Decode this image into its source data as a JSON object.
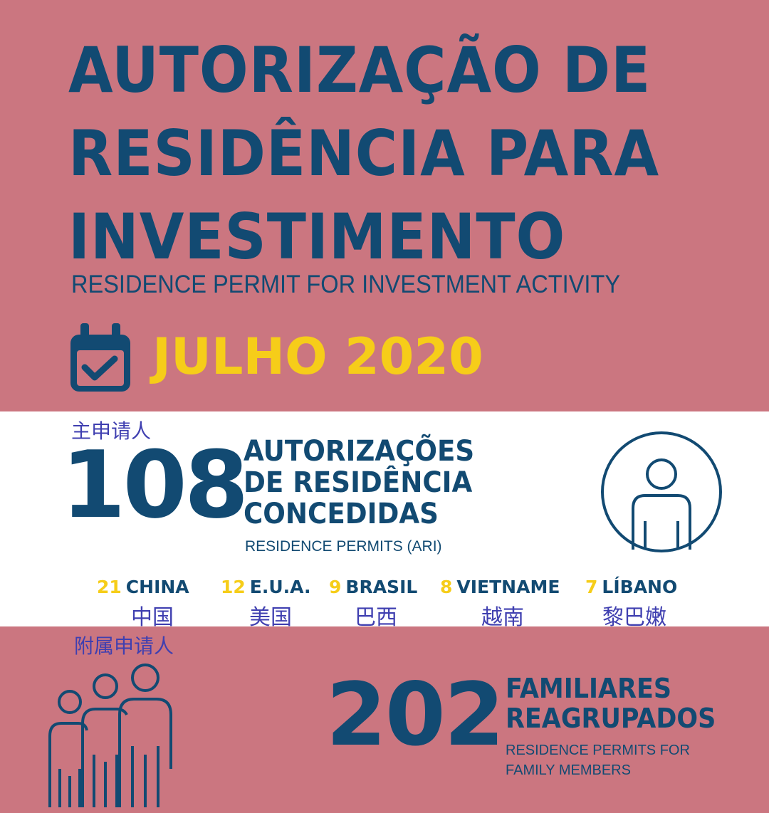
{
  "colors": {
    "background_pink": "#cb7680",
    "navy": "#124a72",
    "yellow": "#f6cd19",
    "white": "#ffffff",
    "chinese_annotation": "#3f3fb0"
  },
  "header": {
    "title_lines": [
      "AUTORIZAÇÃO DE",
      "RESIDÊNCIA PARA",
      "INVESTIMENTO"
    ],
    "subtitle": "RESIDENCE PERMIT FOR INVESTMENT ACTIVITY",
    "date_icon": "calendar-check-icon",
    "date": "JULHO 2020"
  },
  "main_applicants": {
    "zh_label": "主申请人",
    "count": "108",
    "title_lines": [
      "AUTORIZAÇÕES",
      "DE RESIDÊNCIA",
      "CONCEDIDAS"
    ],
    "subtitle": "RESIDENCE PERMITS  (ARI)",
    "icon": "person-circle-icon"
  },
  "countries": [
    {
      "count": "21",
      "name": "CHINA",
      "zh": "中国"
    },
    {
      "count": "12",
      "name": "E.U.A.",
      "zh": "美国"
    },
    {
      "count": "9",
      "name": "BRASIL",
      "zh": "巴西"
    },
    {
      "count": "8",
      "name": "VIETNAME",
      "zh": "越南"
    },
    {
      "count": "7",
      "name": "LÍBANO",
      "zh": "黎巴嫩"
    }
  ],
  "dependents": {
    "zh_label": "附属申请人",
    "icon": "family-group-icon",
    "count": "202",
    "title_lines": [
      "FAMILIARES",
      "REAGRUPADOS"
    ],
    "subtitle_lines": [
      "RESIDENCE PERMITS FOR",
      "FAMILY MEMBERS"
    ]
  }
}
